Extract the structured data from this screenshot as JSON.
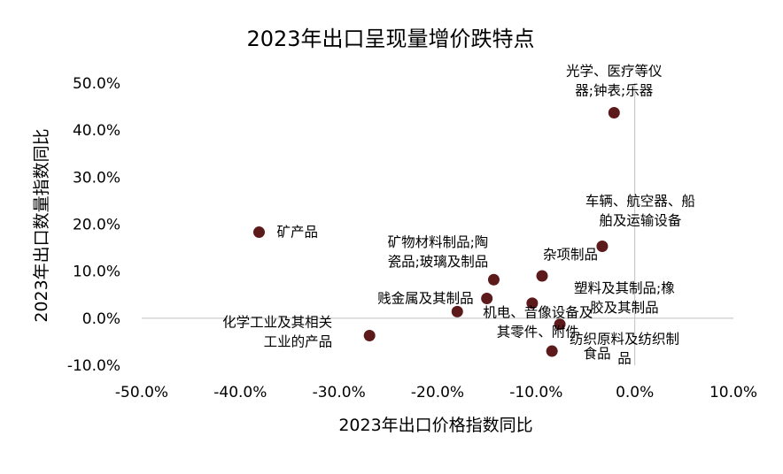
{
  "chart_data": {
    "type": "scatter",
    "title": "2023年出口呈现量增价跌特点",
    "xlabel": "2023年出口价格指数同比",
    "ylabel": "2023年出口数量指数同比",
    "xlim": [
      -0.5,
      0.1
    ],
    "ylim": [
      -0.1,
      0.5
    ],
    "x_ticks": [
      "-50.0%",
      "-40.0%",
      "-30.0%",
      "-20.0%",
      "-10.0%",
      "0.0%",
      "10.0%"
    ],
    "y_ticks": [
      "-10.0%",
      "0.0%",
      "10.0%",
      "20.0%",
      "30.0%",
      "40.0%",
      "50.0%"
    ],
    "grid": false,
    "point_color": "#5c1a1b",
    "points": [
      {
        "label": [
          "光学、医疗等仪",
          "器;钟表;乐器"
        ],
        "x": -0.021,
        "y": 0.437
      },
      {
        "label": [
          "矿产品"
        ],
        "x": -0.381,
        "y": 0.183
      },
      {
        "label": [
          "车辆、航空器、船",
          "舶及运输设备"
        ],
        "x": -0.033,
        "y": 0.153
      },
      {
        "label": [
          "矿物材料制品;陶",
          "瓷品;玻璃及制品"
        ],
        "x": -0.143,
        "y": 0.082
      },
      {
        "label": [
          "杂项制品"
        ],
        "x": -0.094,
        "y": 0.09
      },
      {
        "label": [
          "贱金属及其制品"
        ],
        "x": -0.15,
        "y": 0.042
      },
      {
        "label": [
          "塑料及其制品;橡",
          "胶及其制品"
        ],
        "x": -0.104,
        "y": 0.032
      },
      {
        "label": [
          "机电、音像设备及",
          "其零件、附件"
        ],
        "x": -0.18,
        "y": 0.014
      },
      {
        "label": [
          "化学工业及其相关",
          "工业的产品"
        ],
        "x": -0.269,
        "y": -0.037
      },
      {
        "label": [
          "纺织原料及纺织制",
          "品"
        ],
        "x": -0.076,
        "y": -0.013
      },
      {
        "label": [
          "食品"
        ],
        "x": -0.084,
        "y": -0.07
      }
    ]
  }
}
